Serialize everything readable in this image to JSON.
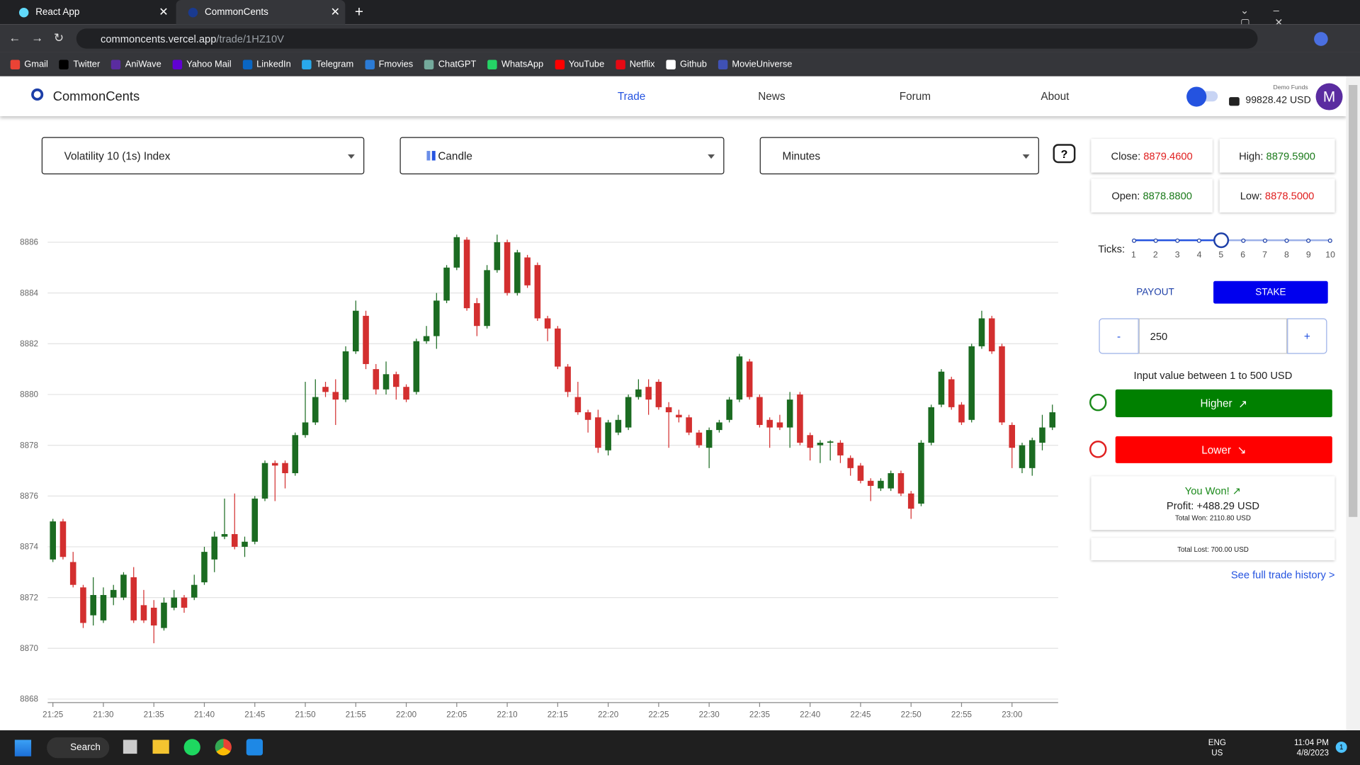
{
  "browser": {
    "tabs": [
      "React App",
      "CommonCents"
    ],
    "url_host": "commoncents.vercel.app",
    "url_path": "/trade/1HZ10V",
    "bookmarks": [
      "Gmail",
      "Twitter",
      "AniWave",
      "Yahoo Mail",
      "LinkedIn",
      "Telegram",
      "Fmovies",
      "ChatGPT",
      "WhatsApp",
      "YouTube",
      "Netflix",
      "Github",
      "MovieUniverse"
    ]
  },
  "header": {
    "brand": "CommonCents",
    "nav": [
      "Trade",
      "News",
      "Forum",
      "About"
    ],
    "funds_label": "Demo Funds",
    "balance": "99828.42 USD",
    "avatar": "M"
  },
  "controls": {
    "symbol": "Volatility 10 (1s) Index",
    "chart_style": "Candle",
    "interval": "Minutes",
    "help": "?"
  },
  "quote": {
    "close_label": "Close:",
    "close": "8879.4600",
    "high_label": "High:",
    "high": "8879.5900",
    "open_label": "Open:",
    "open": "8878.8800",
    "low_label": "Low:",
    "low": "8878.5000"
  },
  "ticks": {
    "label": "Ticks:",
    "options": [
      "1",
      "2",
      "3",
      "4",
      "5",
      "6",
      "7",
      "8",
      "9",
      "10"
    ],
    "selected": 4
  },
  "trade": {
    "payout": "PAYOUT",
    "stake": "STAKE",
    "minus": "-",
    "amount": "250",
    "plus": "+",
    "hint": "Input value between 1 to 500 USD",
    "higher": "Higher",
    "lower": "Lower"
  },
  "result": {
    "status": "You Won!",
    "profit": "Profit: +488.29 USD",
    "total_won": "Total Won: 2110.80 USD",
    "total_lost": "Total Lost: 700.00 USD",
    "history_link": "See full trade history >"
  },
  "taskbar": {
    "search": "Search",
    "lang": "ENG",
    "region": "US",
    "time": "11:04 PM",
    "date": "4/8/2023",
    "notifications": "1"
  },
  "chart_data": {
    "type": "candlestick",
    "up_color": "#1b6b21",
    "down_color": "#d32f2f",
    "grid": true,
    "ylim": [
      8868,
      8887
    ],
    "yticks": [
      8868,
      8870,
      8872,
      8874,
      8876,
      8878,
      8880,
      8882,
      8884,
      8886
    ],
    "categories": [
      "21:25",
      null,
      null,
      null,
      null,
      "21:30",
      null,
      null,
      null,
      null,
      "21:35",
      null,
      null,
      null,
      null,
      "21:40",
      null,
      null,
      null,
      null,
      "21:45",
      null,
      null,
      null,
      null,
      "21:50",
      null,
      null,
      null,
      null,
      "21:55",
      null,
      null,
      null,
      null,
      "22:00",
      null,
      null,
      null,
      null,
      "22:05",
      null,
      null,
      null,
      null,
      "22:10",
      null,
      null,
      null,
      null,
      "22:15",
      null,
      null,
      null,
      null,
      "22:20",
      null,
      null,
      null,
      null,
      "22:25",
      null,
      null,
      null,
      null,
      "22:30",
      null,
      null,
      null,
      null,
      "22:35",
      null,
      null,
      null,
      null,
      "22:40",
      null,
      null,
      null,
      null,
      "22:45",
      null,
      null,
      null,
      null,
      "22:50",
      null,
      null,
      null,
      null,
      "22:55",
      null,
      null,
      null,
      null,
      "23:00",
      null,
      null,
      null,
      null
    ],
    "open": [
      8873.5,
      8875.0,
      8873.4,
      8872.4,
      8871.3,
      8871.1,
      8872.0,
      8872.0,
      8872.8,
      8871.7,
      8871.6,
      8870.8,
      8871.6,
      8872.0,
      8872.0,
      8872.6,
      8873.5,
      8874.4,
      8874.5,
      8874.0,
      8874.2,
      8875.9,
      8877.3,
      8877.3,
      8876.9,
      8878.4,
      8878.9,
      8880.3,
      8880.1,
      8879.8,
      8881.7,
      8883.1,
      8881.0,
      8880.2,
      8880.8,
      8880.3,
      8880.1,
      8882.1,
      8882.3,
      8883.7,
      8885.0,
      8886.1,
      8883.6,
      8882.7,
      8884.9,
      8886.0,
      8884.0,
      8885.4,
      8885.1,
      8883.0,
      8882.6,
      8881.1,
      8879.9,
      8879.3,
      8879.1,
      8877.8,
      8878.5,
      8878.7,
      8879.9,
      8880.3,
      8880.5,
      8879.5,
      8879.2,
      8879.1,
      8878.5,
      8877.9,
      8878.6,
      8879.0,
      8879.8,
      8881.3,
      8879.9,
      8879.0,
      8878.9,
      8878.7,
      8880.0,
      8878.4,
      8878.0,
      8878.1,
      8878.1,
      8877.5,
      8877.2,
      8876.6,
      8876.3,
      8876.3,
      8876.9,
      8876.1,
      8875.7,
      8878.1,
      8879.6,
      8880.6,
      8879.6,
      8879.0,
      8881.9,
      8883.0,
      8881.9,
      8878.8,
      8877.1,
      8877.1,
      8878.1,
      8878.7
    ],
    "high": [
      8875.1,
      8875.1,
      8873.8,
      8872.5,
      8872.8,
      8872.4,
      8872.5,
      8873.0,
      8873.2,
      8872.3,
      8871.9,
      8872.0,
      8872.3,
      8872.1,
      8872.9,
      8874.0,
      8874.6,
      8875.9,
      8876.1,
      8874.4,
      8876.0,
      8877.4,
      8877.4,
      8877.4,
      8878.5,
      8880.5,
      8880.6,
      8880.5,
      8880.6,
      8881.9,
      8883.7,
      8883.3,
      8881.2,
      8881.3,
      8880.9,
      8880.4,
      8882.2,
      8882.7,
      8884.0,
      8885.1,
      8886.3,
      8886.2,
      8883.8,
      8885.1,
      8886.3,
      8886.1,
      8885.7,
      8885.5,
      8885.2,
      8883.1,
      8882.7,
      8881.2,
      8880.5,
      8879.4,
      8879.4,
      8879.0,
      8879.2,
      8880.0,
      8880.6,
      8880.6,
      8880.6,
      8879.7,
      8879.4,
      8879.2,
      8878.6,
      8878.7,
      8879.0,
      8879.9,
      8881.6,
      8881.4,
      8880.0,
      8879.1,
      8879.2,
      8880.1,
      8880.1,
      8878.5,
      8878.2,
      8878.2,
      8878.2,
      8877.6,
      8877.3,
      8876.7,
      8876.7,
      8877.0,
      8877.0,
      8876.2,
      8878.2,
      8879.6,
      8881.0,
      8880.7,
      8879.7,
      8882.0,
      8883.3,
      8883.1,
      8882.0,
      8878.9,
      8878.1,
      8878.3,
      8879.2,
      8879.6
    ],
    "low": [
      8873.4,
      8873.5,
      8872.4,
      8870.8,
      8870.9,
      8871.0,
      8871.7,
      8871.9,
      8871.0,
      8871.0,
      8870.2,
      8870.7,
      8871.5,
      8871.4,
      8871.9,
      8872.5,
      8873.0,
      8874.3,
      8873.9,
      8873.6,
      8874.1,
      8875.8,
      8875.8,
      8876.3,
      8876.8,
      8878.3,
      8878.8,
      8879.9,
      8878.8,
      8879.7,
      8881.6,
      8881.0,
      8880.0,
      8880.0,
      8879.8,
      8879.7,
      8880.0,
      8882.0,
      8881.8,
      8883.6,
      8884.9,
      8883.3,
      8882.3,
      8882.6,
      8884.8,
      8883.9,
      8883.9,
      8884.2,
      8882.9,
      8882.1,
      8881.0,
      8879.9,
      8879.2,
      8878.5,
      8877.7,
      8877.6,
      8878.4,
      8878.6,
      8879.8,
      8879.2,
      8879.4,
      8877.9,
      8878.9,
      8878.4,
      8877.9,
      8877.1,
      8878.5,
      8878.9,
      8879.7,
      8879.8,
      8878.7,
      8877.9,
      8878.6,
      8877.9,
      8878.0,
      8877.4,
      8877.3,
      8877.4,
      8877.3,
      8876.8,
      8876.5,
      8875.8,
      8876.2,
      8876.2,
      8876.0,
      8875.1,
      8875.6,
      8878.0,
      8879.5,
      8879.4,
      8878.8,
      8878.9,
      8881.8,
      8881.6,
      8878.8,
      8877.1,
      8876.9,
      8876.8,
      8877.8,
      8878.6
    ],
    "close": [
      8875.0,
      8873.6,
      8872.5,
      8871.0,
      8872.1,
      8872.1,
      8872.3,
      8872.9,
      8871.1,
      8871.1,
      8870.9,
      8871.8,
      8872.0,
      8871.6,
      8872.5,
      8873.8,
      8874.4,
      8874.5,
      8874.0,
      8874.2,
      8875.9,
      8877.3,
      8877.2,
      8876.9,
      8878.4,
      8878.9,
      8879.9,
      8880.1,
      8879.8,
      8881.7,
      8883.3,
      8881.2,
      8880.2,
      8880.8,
      8880.3,
      8879.8,
      8882.1,
      8882.3,
      8883.7,
      8885.0,
      8886.2,
      8883.4,
      8882.7,
      8884.9,
      8886.0,
      8884.0,
      8885.6,
      8884.3,
      8883.0,
      8882.6,
      8881.1,
      8880.1,
      8879.3,
      8879.0,
      8877.9,
      8878.9,
      8879.0,
      8879.9,
      8880.2,
      8879.8,
      8879.5,
      8879.3,
      8879.1,
      8878.5,
      8878.0,
      8878.6,
      8878.9,
      8879.8,
      8881.5,
      8879.9,
      8878.8,
      8878.7,
      8878.7,
      8879.8,
      8878.1,
      8877.9,
      8878.1,
      8878.15,
      8877.6,
      8877.1,
      8876.6,
      8876.4,
      8876.6,
      8876.9,
      8876.1,
      8875.5,
      8878.1,
      8879.5,
      8880.9,
      8879.5,
      8878.9,
      8881.9,
      8883.0,
      8881.7,
      8878.9,
      8877.9,
      8878.0,
      8878.2,
      8878.7,
      8879.3
    ]
  }
}
